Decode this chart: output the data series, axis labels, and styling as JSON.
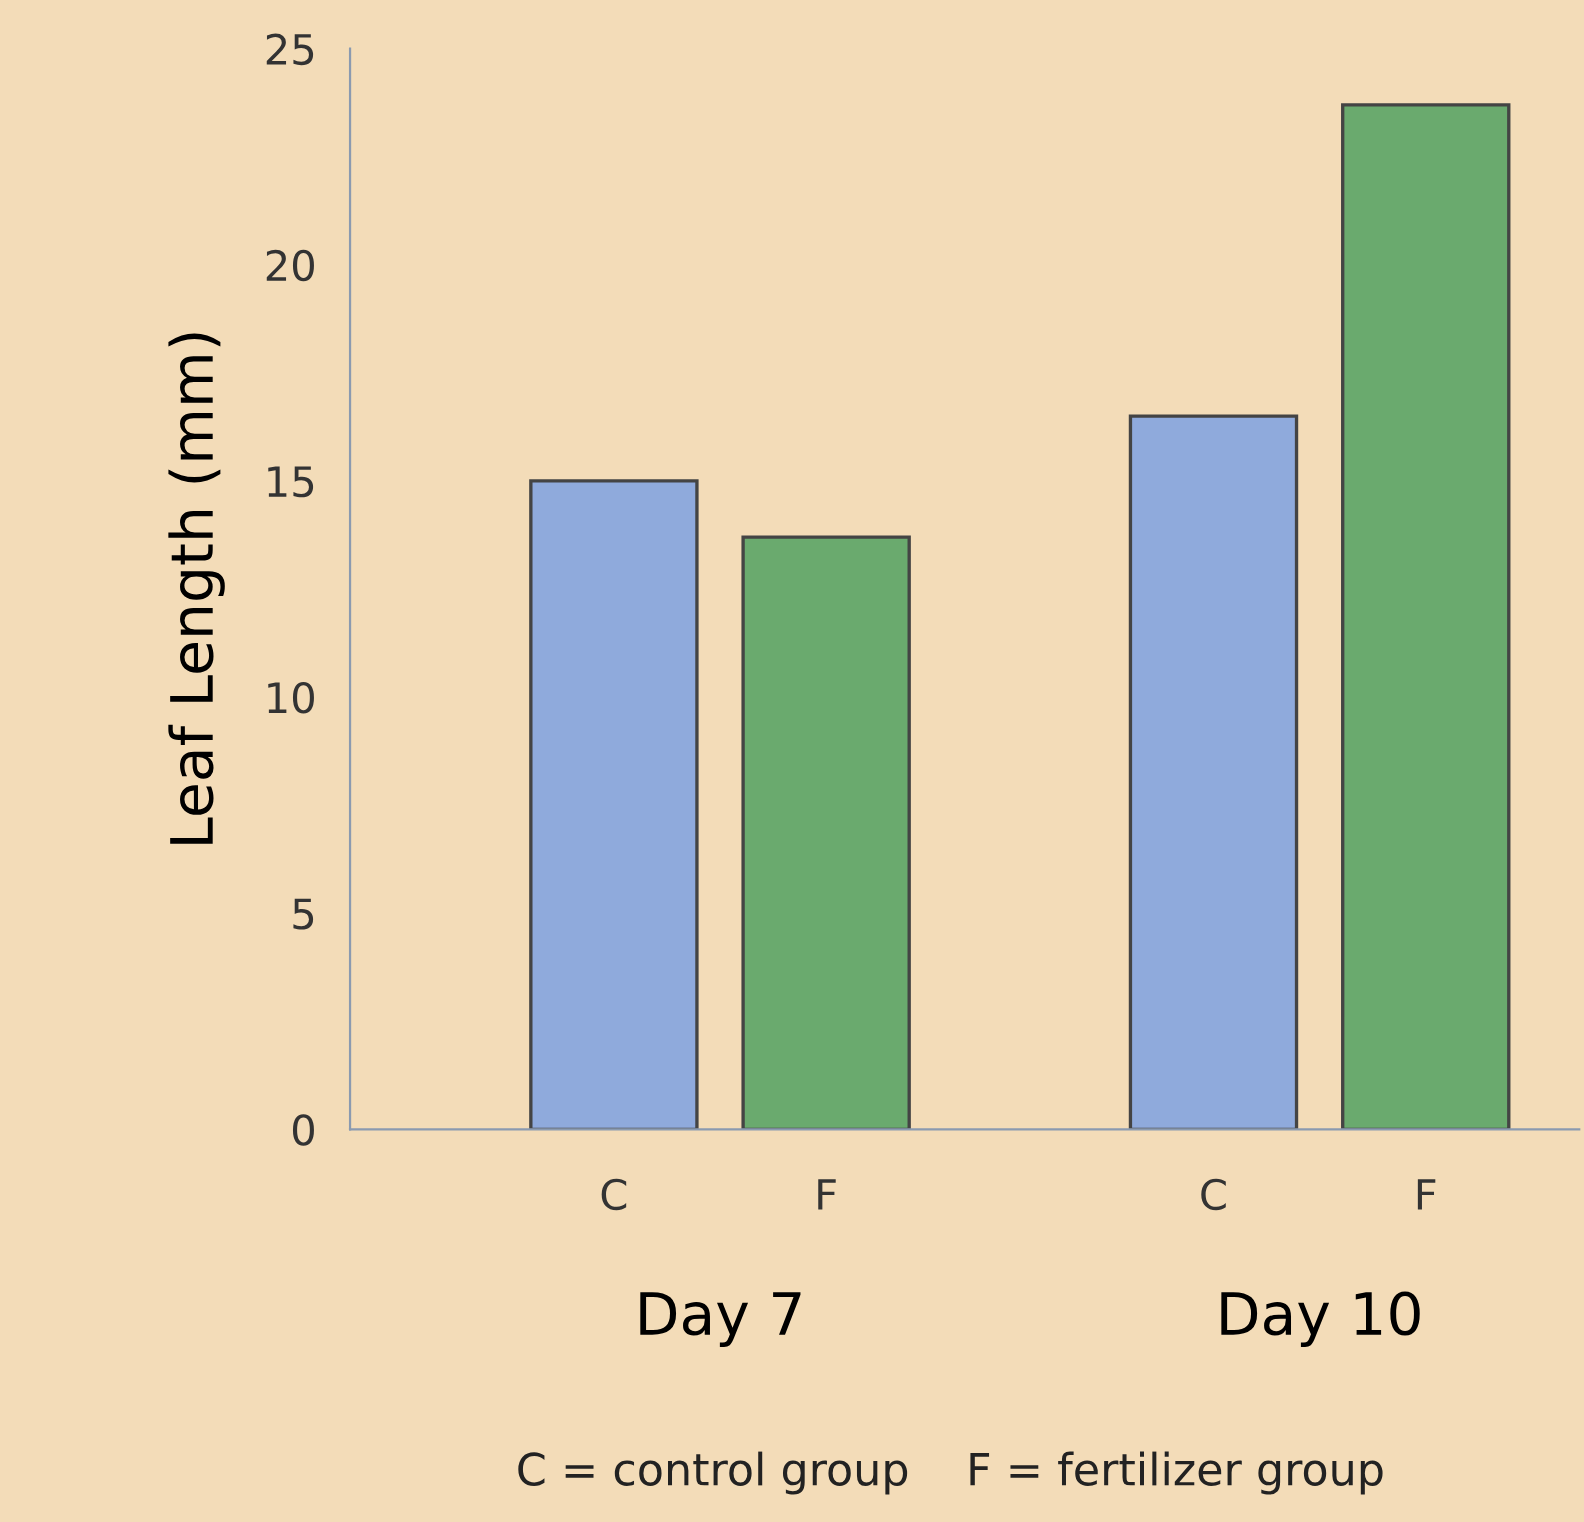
{
  "chart_data": {
    "type": "bar",
    "ylabel": "Leaf Length (mm)",
    "categories": [
      "Day 7",
      "Day 10"
    ],
    "series": [
      {
        "name": "C",
        "color": "#8faadc",
        "values": [
          15.0,
          16.5
        ]
      },
      {
        "name": "F",
        "color": "#6aaa6e",
        "values": [
          13.7,
          23.7
        ]
      }
    ],
    "ylim": [
      0,
      25
    ],
    "yticks": [
      0,
      5,
      10,
      15,
      20,
      25
    ],
    "grid": false,
    "legend": false,
    "annotations": [
      "C = control group    F = fertilizer group"
    ]
  }
}
